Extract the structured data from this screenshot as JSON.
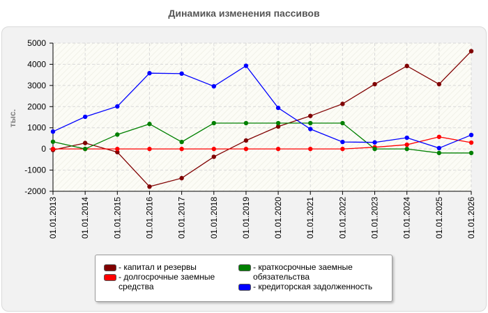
{
  "chart_data": {
    "type": "line",
    "title": "Динамика изменения пассивов",
    "ylabel": "тыс.",
    "xlabel": "",
    "categories": [
      "01.01.2013",
      "01.01.2014",
      "01.01.2015",
      "01.01.2016",
      "01.01.2017",
      "01.01.2018",
      "01.01.2019",
      "01.01.2020",
      "01.01.2021",
      "01.01.2022",
      "01.01.2023",
      "01.01.2024",
      "01.01.2025",
      "01.01.2026"
    ],
    "ylim": [
      -2000,
      5000
    ],
    "yticks": [
      5000,
      4000,
      3000,
      2000,
      1000,
      0,
      -1000,
      -2000
    ],
    "grid": true,
    "legend_position": "bottom",
    "series": [
      {
        "name": "капитал и резервы",
        "color": "#800000",
        "values": [
          -50,
          280,
          -150,
          -1780,
          -1380,
          -370,
          400,
          1060,
          1560,
          2130,
          3060,
          3920,
          3060,
          4620
        ]
      },
      {
        "name": "долгосрочные заемные средства",
        "color": "#ff0000",
        "values": [
          0,
          0,
          0,
          0,
          0,
          0,
          0,
          0,
          0,
          0,
          80,
          200,
          570,
          300
        ]
      },
      {
        "name": "краткосрочные заемные обязательства",
        "color": "#008000",
        "values": [
          340,
          0,
          680,
          1180,
          330,
          1220,
          1220,
          1220,
          1220,
          1220,
          0,
          0,
          -190,
          -190
        ]
      },
      {
        "name": "кредиторская задолженность",
        "color": "#0000ff",
        "values": [
          820,
          1520,
          2010,
          3580,
          3560,
          2960,
          3930,
          1940,
          940,
          330,
          310,
          530,
          40,
          660
        ]
      }
    ]
  },
  "legend": {
    "items": [
      {
        "label_lines": [
          "- капитал и резервы"
        ],
        "color": "#800000"
      },
      {
        "label_lines": [
          "- долгосрочные заемные",
          "средства"
        ],
        "color": "#ff0000"
      },
      {
        "label_lines": [
          "- краткосрочные заемные",
          "обязательства"
        ],
        "color": "#008000"
      },
      {
        "label_lines": [
          "- кредиторская задолженность"
        ],
        "color": "#0000ff"
      }
    ]
  }
}
